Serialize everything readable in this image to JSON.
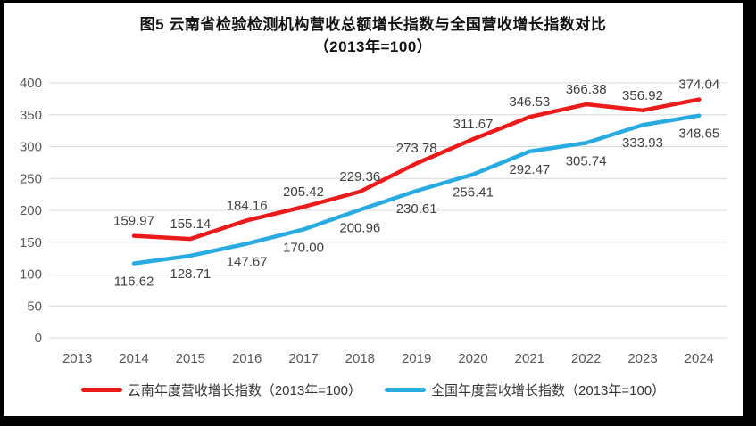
{
  "chart_data": {
    "type": "line",
    "title": "图5  云南省检验检测机构营收总额增长指数与全国营收增长指数对比",
    "subtitle": "（2013年=100）",
    "categories": [
      "2013",
      "2014",
      "2015",
      "2016",
      "2017",
      "2018",
      "2019",
      "2020",
      "2021",
      "2022",
      "2023",
      "2024"
    ],
    "ylim": [
      0,
      400
    ],
    "ytick_step": 50,
    "yticks": [
      0,
      50,
      100,
      150,
      200,
      250,
      300,
      350,
      400
    ],
    "grid": true,
    "legend_position": "bottom",
    "series": [
      {
        "name": "云南年度营收增长指数（2013年=100）",
        "color": "#ec1b1b",
        "start_category": "2014",
        "values": [
          159.97,
          155.14,
          184.16,
          205.42,
          229.36,
          273.78,
          311.67,
          346.53,
          366.38,
          356.92,
          374.04
        ],
        "point_labels": [
          "159.97",
          "155.14",
          "184.16",
          "205.42",
          "229.36",
          "273.78",
          "311.67",
          "346.53",
          "366.38",
          "356.92",
          "374.04"
        ],
        "label_position": "above"
      },
      {
        "name": "全国年度营收增长指数（2013年=100）",
        "color": "#29abe2",
        "start_category": "2014",
        "values": [
          116.62,
          128.71,
          147.67,
          170.0,
          200.96,
          230.61,
          256.41,
          292.47,
          305.74,
          333.93,
          348.65
        ],
        "point_labels": [
          "116.62",
          "128.71",
          "147.67",
          "170.00",
          "200.96",
          "230.61",
          "256.41",
          "292.47",
          "305.74",
          "333.93",
          "348.65"
        ],
        "label_position": "below"
      }
    ]
  },
  "colors": {
    "background": "#ffffff",
    "frame": "#000000",
    "gridline": "#d9d9d9",
    "tick_label": "#595959",
    "data_label": "#404040"
  }
}
